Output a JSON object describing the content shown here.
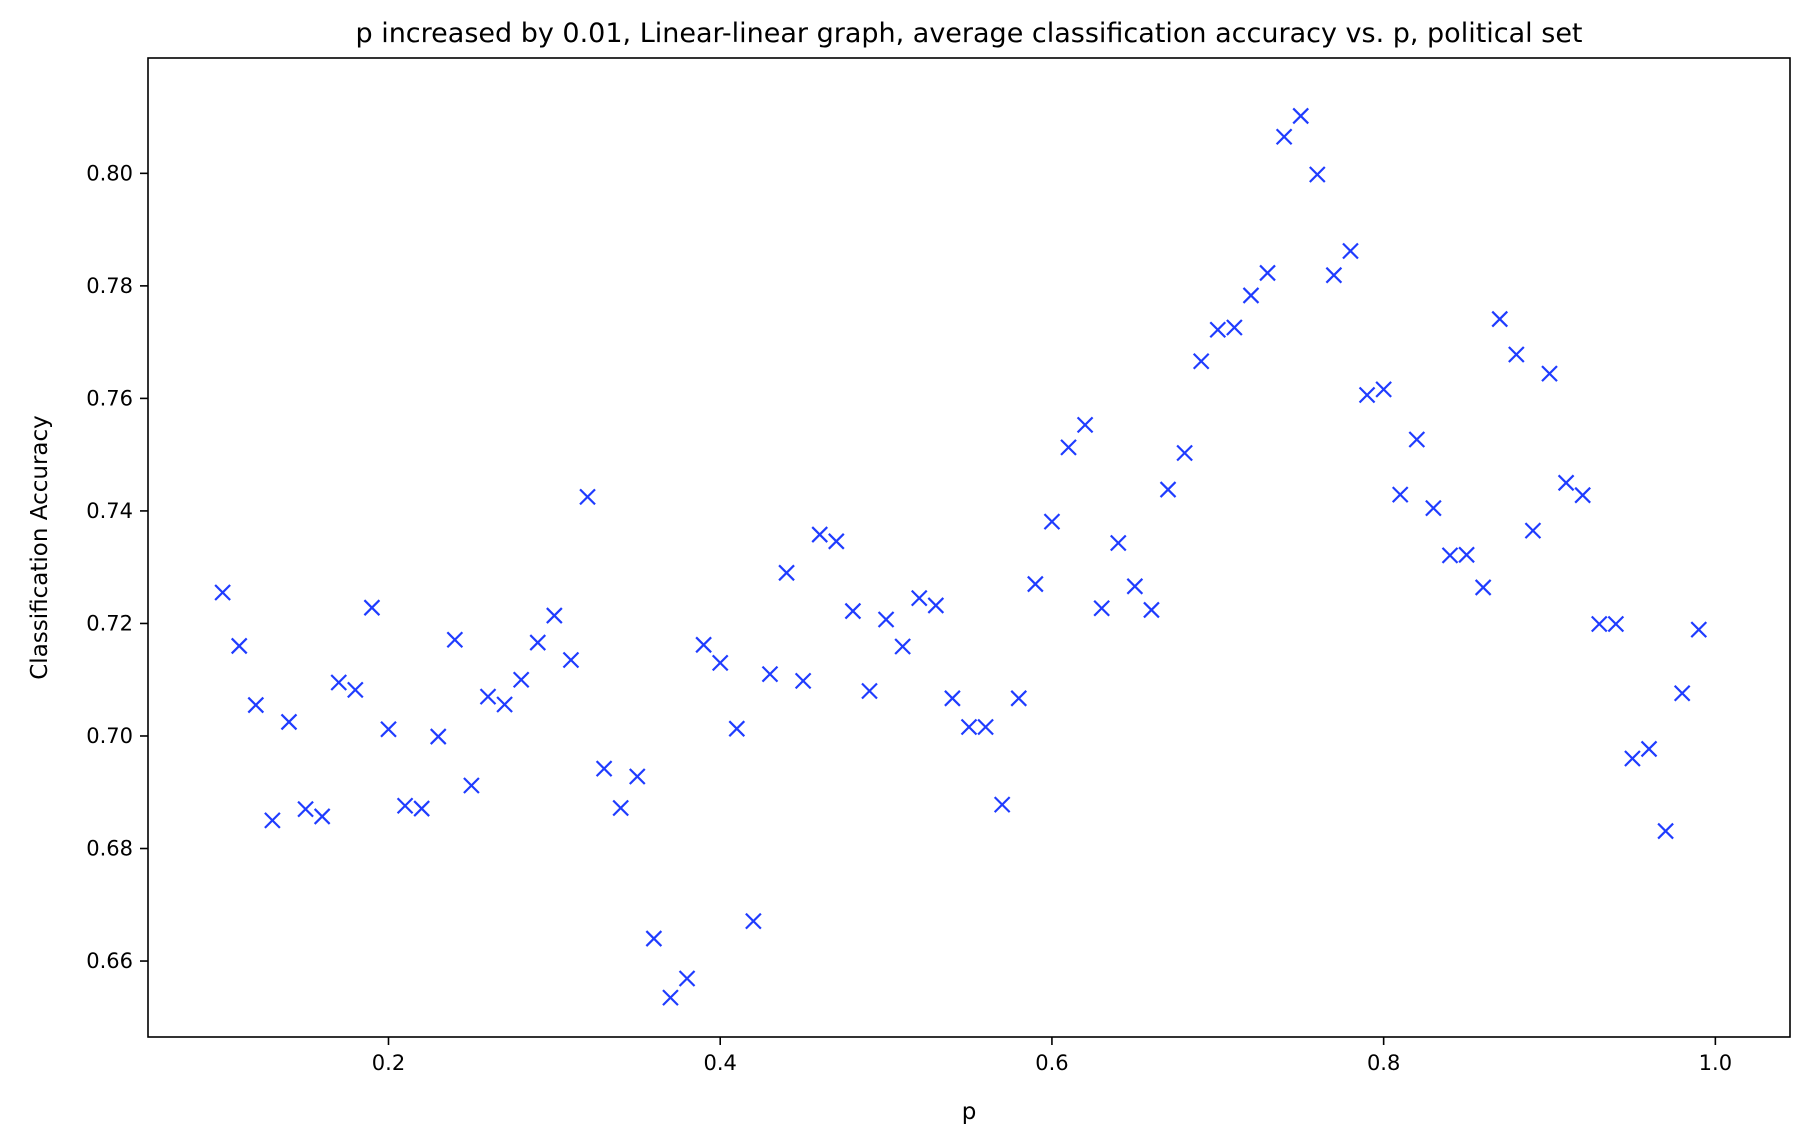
{
  "chart_data": {
    "type": "scatter",
    "title": "p increased by 0.01, Linear-linear graph, average classification accuracy vs. p, political set",
    "xlabel": "p",
    "ylabel": "Classification Accuracy",
    "xlim": [
      0.055,
      1.045
    ],
    "ylim": [
      0.6465,
      0.8205
    ],
    "xticks": [
      {
        "value": 0.2,
        "label": "0.2"
      },
      {
        "value": 0.4,
        "label": "0.4"
      },
      {
        "value": 0.6,
        "label": "0.6"
      },
      {
        "value": 0.8,
        "label": "0.8"
      },
      {
        "value": 1.0,
        "label": "1.0"
      }
    ],
    "yticks": [
      {
        "value": 0.66,
        "label": "0.66"
      },
      {
        "value": 0.68,
        "label": "0.68"
      },
      {
        "value": 0.7,
        "label": "0.70"
      },
      {
        "value": 0.72,
        "label": "0.72"
      },
      {
        "value": 0.74,
        "label": "0.74"
      },
      {
        "value": 0.76,
        "label": "0.76"
      },
      {
        "value": 0.78,
        "label": "0.78"
      },
      {
        "value": 0.8,
        "label": "0.80"
      }
    ],
    "grid": false,
    "marker": "x",
    "color": "#1f3cff",
    "series": [
      {
        "x": [
          0.1,
          0.11,
          0.12,
          0.13,
          0.14,
          0.15,
          0.16,
          0.17,
          0.18,
          0.19,
          0.2,
          0.21,
          0.22,
          0.23,
          0.24,
          0.25,
          0.26,
          0.27,
          0.28,
          0.29,
          0.3,
          0.31,
          0.32,
          0.33,
          0.34,
          0.35,
          0.36,
          0.37,
          0.38,
          0.39,
          0.4,
          0.41,
          0.42,
          0.43,
          0.44,
          0.45,
          0.46,
          0.47,
          0.48,
          0.49,
          0.5,
          0.51,
          0.52,
          0.53,
          0.54,
          0.55,
          0.56,
          0.57,
          0.58,
          0.59,
          0.6,
          0.61,
          0.62,
          0.63,
          0.64,
          0.65,
          0.66,
          0.67,
          0.68,
          0.69,
          0.7,
          0.71,
          0.72,
          0.73,
          0.74,
          0.75,
          0.76,
          0.77,
          0.78,
          0.79,
          0.8,
          0.81,
          0.82,
          0.83,
          0.84,
          0.85,
          0.86,
          0.87,
          0.88,
          0.89,
          0.9,
          0.91,
          0.92,
          0.93,
          0.94,
          0.95,
          0.96,
          0.97,
          0.98,
          0.99
        ],
        "y": [
          0.7255,
          0.716,
          0.7055,
          0.685,
          0.7025,
          0.687,
          0.6857,
          0.7095,
          0.7082,
          0.7228,
          0.7012,
          0.6876,
          0.6871,
          0.6999,
          0.7171,
          0.6912,
          0.707,
          0.7056,
          0.71,
          0.7166,
          0.7214,
          0.7135,
          0.7425,
          0.6942,
          0.6872,
          0.6928,
          0.664,
          0.6535,
          0.6569,
          0.7162,
          0.713,
          0.7013,
          0.6671,
          0.711,
          0.729,
          0.7098,
          0.7358,
          0.7346,
          0.7222,
          0.708,
          0.7207,
          0.7159,
          0.7245,
          0.7232,
          0.7067,
          0.7016,
          0.7016,
          0.6878,
          0.7067,
          0.727,
          0.7381,
          0.7513,
          0.7553,
          0.7227,
          0.7343,
          0.7266,
          0.7224,
          0.7438,
          0.7503,
          0.7666,
          0.7722,
          0.7726,
          0.7783,
          0.7823,
          0.8065,
          0.8102,
          0.7998,
          0.7819,
          0.7862,
          0.7606,
          0.7616,
          0.7429,
          0.7527,
          0.7405,
          0.7321,
          0.7322,
          0.7264,
          0.7741,
          0.7678,
          0.7365,
          0.7644,
          0.745,
          0.7428,
          0.7199,
          0.7199,
          0.696,
          0.6977,
          0.6831,
          0.7076,
          0.7189
        ]
      }
    ]
  }
}
